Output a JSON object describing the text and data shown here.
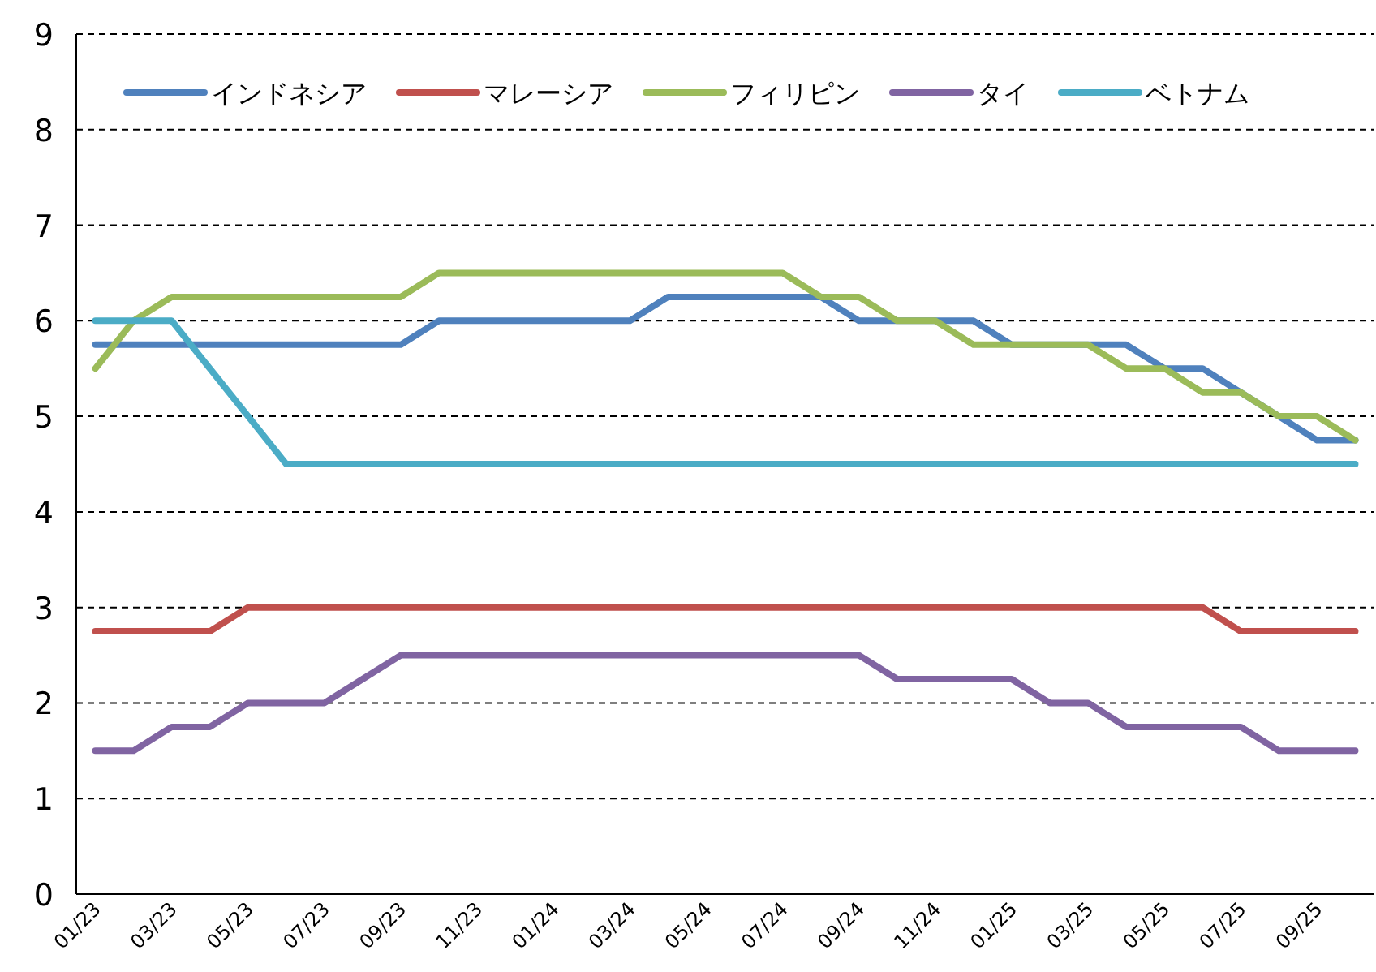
{
  "chart_data": {
    "type": "line",
    "categories": [
      "01/23",
      null,
      "03/23",
      null,
      "05/23",
      null,
      "07/23",
      null,
      "09/23",
      null,
      "11/23",
      null,
      "01/24",
      null,
      "03/24",
      null,
      "05/24",
      null,
      "07/24",
      null,
      "09/24",
      null,
      "11/24",
      null,
      "01/25",
      null,
      "03/25",
      null,
      "05/25",
      null,
      "07/25",
      null,
      "09/25",
      null
    ],
    "series": [
      {
        "name": "インドネシア",
        "color": "#4f81bd",
        "values": [
          5.75,
          5.75,
          5.75,
          5.75,
          5.75,
          5.75,
          5.75,
          5.75,
          5.75,
          6,
          6,
          6,
          6,
          6,
          6,
          6.25,
          6.25,
          6.25,
          6.25,
          6.25,
          6,
          6,
          6,
          6,
          5.75,
          5.75,
          5.75,
          5.75,
          5.5,
          5.5,
          5.25,
          5,
          4.75,
          4.75
        ]
      },
      {
        "name": "マレーシア",
        "color": "#c0504d",
        "values": [
          2.75,
          2.75,
          2.75,
          2.75,
          3,
          3,
          3,
          3,
          3,
          3,
          3,
          3,
          3,
          3,
          3,
          3,
          3,
          3,
          3,
          3,
          3,
          3,
          3,
          3,
          3,
          3,
          3,
          3,
          3,
          3,
          2.75,
          2.75,
          2.75,
          2.75
        ]
      },
      {
        "name": "フィリピン",
        "color": "#9bbb59",
        "values": [
          5.5,
          6,
          6.25,
          6.25,
          6.25,
          6.25,
          6.25,
          6.25,
          6.25,
          6.5,
          6.5,
          6.5,
          6.5,
          6.5,
          6.5,
          6.5,
          6.5,
          6.5,
          6.5,
          6.25,
          6.25,
          6,
          6,
          5.75,
          5.75,
          5.75,
          5.75,
          5.5,
          5.5,
          5.25,
          5.25,
          5,
          5,
          4.75
        ]
      },
      {
        "name": "タイ",
        "color": "#8064a2",
        "values": [
          1.5,
          1.5,
          1.75,
          1.75,
          2,
          2,
          2,
          2.25,
          2.5,
          2.5,
          2.5,
          2.5,
          2.5,
          2.5,
          2.5,
          2.5,
          2.5,
          2.5,
          2.5,
          2.5,
          2.5,
          2.25,
          2.25,
          2.25,
          2.25,
          2,
          2,
          1.75,
          1.75,
          1.75,
          1.75,
          1.5,
          1.5,
          1.5
        ]
      },
      {
        "name": "ベトナム",
        "color": "#4bacc6",
        "values": [
          6,
          6,
          6,
          5.5,
          5,
          4.5,
          4.5,
          4.5,
          4.5,
          4.5,
          4.5,
          4.5,
          4.5,
          4.5,
          4.5,
          4.5,
          4.5,
          4.5,
          4.5,
          4.5,
          4.5,
          4.5,
          4.5,
          4.5,
          4.5,
          4.5,
          4.5,
          4.5,
          4.5,
          4.5,
          4.5,
          4.5,
          4.5,
          4.5
        ]
      }
    ],
    "ylim": [
      0,
      9
    ],
    "yticks": [
      0,
      1,
      2,
      3,
      4,
      5,
      6,
      7,
      8,
      9
    ],
    "grid": "y",
    "legend": "top"
  }
}
